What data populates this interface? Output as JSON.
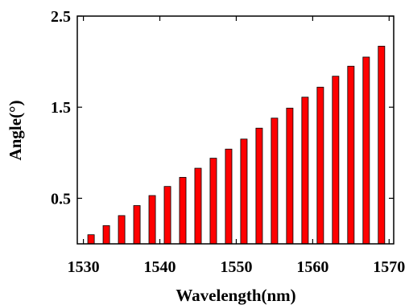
{
  "chart_data": {
    "type": "bar",
    "xlabel": "Wavelength(nm)",
    "ylabel": "Angle(°)",
    "xlim": [
      1529.2,
      1570.6
    ],
    "ylim": [
      0,
      2.5
    ],
    "x_ticks": [
      1530,
      1540,
      1550,
      1560,
      1570
    ],
    "y_ticks": [
      0.5,
      1.5,
      2.5
    ],
    "grid": false,
    "bar_color": "#ff0000",
    "bar_edge_color": "#000000",
    "x": [
      1531,
      1533,
      1535,
      1537,
      1539,
      1541,
      1543,
      1545,
      1547,
      1549,
      1551,
      1553,
      1555,
      1557,
      1559,
      1561,
      1563,
      1565,
      1567,
      1569
    ],
    "values": [
      0.1,
      0.2,
      0.31,
      0.42,
      0.53,
      0.63,
      0.73,
      0.83,
      0.94,
      1.04,
      1.15,
      1.27,
      1.38,
      1.49,
      1.61,
      1.72,
      1.84,
      1.95,
      2.05,
      2.17
    ]
  }
}
